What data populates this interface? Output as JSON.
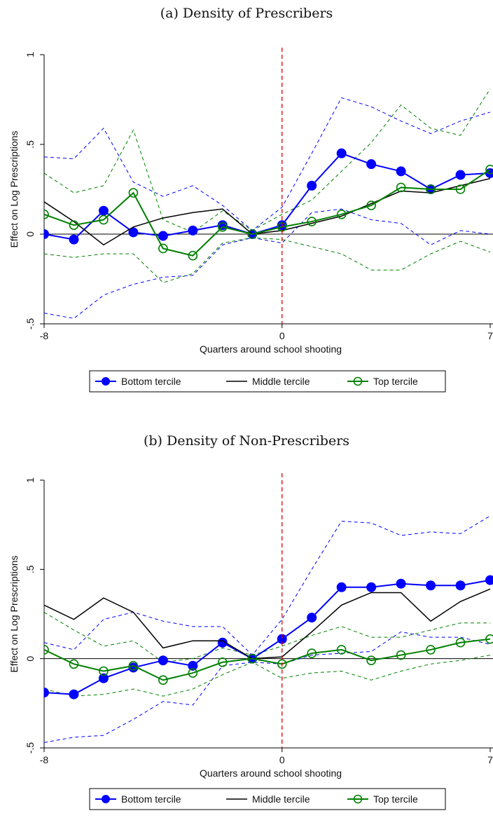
{
  "chart_data": [
    {
      "type": "line",
      "title": "(a) Density of Prescribers",
      "xlabel": "Quarters around school shooting",
      "ylabel": "Effect on Log Prescriptions",
      "xlim": [
        -8,
        7
      ],
      "ylim": [
        -0.5,
        1
      ],
      "xticks": [
        {
          "value": -8,
          "label": "-8"
        },
        {
          "value": 0,
          "label": "0"
        },
        {
          "value": 7,
          "label": "7"
        }
      ],
      "yticks": [
        {
          "value": -0.5,
          "label": "-.5"
        },
        {
          "value": 0,
          "label": "0"
        },
        {
          "value": 0.5,
          "label": ".5"
        },
        {
          "value": 1,
          "label": "1"
        }
      ],
      "event_line_x": 0,
      "x": [
        -8,
        -7,
        -6,
        -5,
        -4,
        -3,
        -2,
        -1,
        0,
        1,
        2,
        3,
        4,
        5,
        6,
        7
      ],
      "series": [
        {
          "name": "Bottom tercile",
          "style": "filled-marker",
          "color": "#0000ff",
          "values": [
            0.0,
            -0.03,
            0.13,
            0.01,
            -0.01,
            0.02,
            0.05,
            0.0,
            0.05,
            0.27,
            0.45,
            0.39,
            0.35,
            0.25,
            0.33,
            0.34
          ],
          "ci_low": [
            -0.44,
            -0.47,
            -0.34,
            -0.28,
            -0.24,
            -0.23,
            -0.06,
            -0.02,
            -0.05,
            0.12,
            0.14,
            0.08,
            0.06,
            -0.06,
            0.02,
            0.0
          ],
          "ci_high": [
            0.43,
            0.42,
            0.59,
            0.29,
            0.21,
            0.27,
            0.16,
            0.02,
            0.15,
            0.45,
            0.76,
            0.71,
            0.63,
            0.56,
            0.63,
            0.68
          ]
        },
        {
          "name": "Middle tercile",
          "style": "line",
          "color": "#000000",
          "values": [
            0.18,
            0.07,
            -0.06,
            0.04,
            0.09,
            0.12,
            0.14,
            0.0,
            0.02,
            0.06,
            0.1,
            0.17,
            0.24,
            0.23,
            0.27,
            0.31
          ]
        },
        {
          "name": "Top tercile",
          "style": "hollow-marker",
          "color": "#008000",
          "values": [
            0.11,
            0.05,
            0.08,
            0.23,
            -0.08,
            -0.12,
            0.04,
            0.0,
            0.04,
            0.07,
            0.11,
            0.16,
            0.26,
            0.25,
            0.25,
            0.36
          ],
          "ci_low": [
            -0.11,
            -0.13,
            -0.11,
            -0.11,
            -0.27,
            -0.22,
            -0.05,
            -0.02,
            -0.03,
            -0.07,
            -0.11,
            -0.2,
            -0.2,
            -0.11,
            -0.04,
            -0.1
          ],
          "ci_high": [
            0.34,
            0.23,
            0.27,
            0.58,
            0.08,
            0.01,
            0.13,
            0.02,
            0.11,
            0.19,
            0.35,
            0.51,
            0.72,
            0.59,
            0.55,
            0.81
          ]
        }
      ],
      "legend": {
        "position": "bottom",
        "labels": [
          "Bottom tercile",
          "Middle tercile",
          "Top tercile"
        ]
      },
      "grid": false
    },
    {
      "type": "line",
      "title": "(b) Density of Non-Prescribers",
      "xlabel": "Quarters around school shooting",
      "ylabel": "Effect on Log Prescriptions",
      "xlim": [
        -8,
        7
      ],
      "ylim": [
        -0.5,
        1
      ],
      "xticks": [
        {
          "value": -8,
          "label": "-8"
        },
        {
          "value": 0,
          "label": "0"
        },
        {
          "value": 7,
          "label": "7"
        }
      ],
      "yticks": [
        {
          "value": -0.5,
          "label": "-.5"
        },
        {
          "value": 0,
          "label": "0"
        },
        {
          "value": 0.5,
          "label": ".5"
        },
        {
          "value": 1,
          "label": "1"
        }
      ],
      "event_line_x": 0,
      "x": [
        -8,
        -7,
        -6,
        -5,
        -4,
        -3,
        -2,
        -1,
        0,
        1,
        2,
        3,
        4,
        5,
        6,
        7
      ],
      "series": [
        {
          "name": "Bottom tercile",
          "style": "filled-marker",
          "color": "#0000ff",
          "values": [
            -0.19,
            -0.2,
            -0.11,
            -0.05,
            -0.01,
            -0.04,
            0.09,
            0.0,
            0.11,
            0.23,
            0.4,
            0.4,
            0.42,
            0.41,
            0.41,
            0.44
          ],
          "ci_low": [
            -0.47,
            -0.44,
            -0.43,
            -0.34,
            -0.24,
            -0.26,
            -0.04,
            -0.02,
            -0.03,
            0.02,
            0.03,
            0.04,
            0.15,
            0.12,
            0.12,
            0.08
          ],
          "ci_high": [
            0.09,
            0.05,
            0.22,
            0.26,
            0.21,
            0.18,
            0.18,
            0.02,
            0.22,
            0.5,
            0.77,
            0.76,
            0.69,
            0.71,
            0.7,
            0.8
          ]
        },
        {
          "name": "Middle tercile",
          "style": "line",
          "color": "#000000",
          "values": [
            0.3,
            0.22,
            0.34,
            0.26,
            0.06,
            0.1,
            0.1,
            0.0,
            0.01,
            0.15,
            0.3,
            0.37,
            0.37,
            0.21,
            0.32,
            0.39
          ]
        },
        {
          "name": "Top tercile",
          "style": "hollow-marker",
          "color": "#008000",
          "values": [
            0.05,
            -0.03,
            -0.07,
            -0.04,
            -0.12,
            -0.08,
            -0.02,
            0.0,
            -0.03,
            0.03,
            0.05,
            -0.01,
            0.02,
            0.05,
            0.09,
            0.11
          ],
          "ci_low": [
            -0.17,
            -0.21,
            -0.2,
            -0.17,
            -0.21,
            -0.17,
            -0.09,
            -0.02,
            -0.11,
            -0.08,
            -0.07,
            -0.12,
            -0.07,
            -0.03,
            -0.01,
            0.02
          ],
          "ci_high": [
            0.26,
            0.16,
            0.07,
            0.1,
            -0.02,
            0.0,
            0.06,
            0.02,
            0.07,
            0.13,
            0.18,
            0.12,
            0.12,
            0.16,
            0.2,
            0.2
          ]
        }
      ],
      "legend": {
        "position": "bottom",
        "labels": [
          "Bottom tercile",
          "Middle tercile",
          "Top tercile"
        ]
      },
      "grid": false
    }
  ]
}
